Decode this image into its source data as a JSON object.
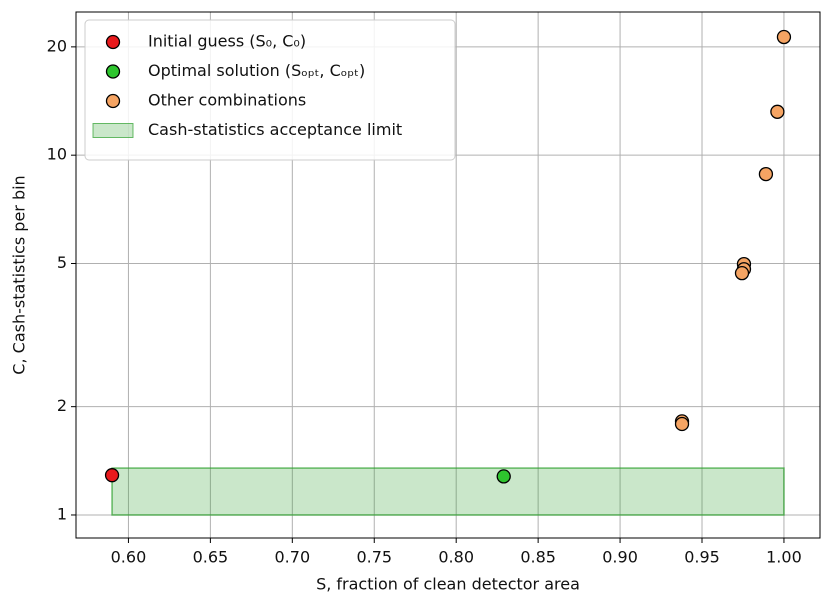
{
  "chart_data": {
    "type": "scatter",
    "xlabel": "S, fraction of clean detector area",
    "ylabel": "C, Cash-statistics per bin",
    "xlim": [
      0.568,
      1.022
    ],
    "ylim": [
      0.863,
      25
    ],
    "xticks": [
      {
        "value": 0.6,
        "label": "0.60"
      },
      {
        "value": 0.65,
        "label": "0.65"
      },
      {
        "value": 0.7,
        "label": "0.70"
      },
      {
        "value": 0.75,
        "label": "0.75"
      },
      {
        "value": 0.8,
        "label": "0.80"
      },
      {
        "value": 0.85,
        "label": "0.85"
      },
      {
        "value": 0.9,
        "label": "0.90"
      },
      {
        "value": 0.95,
        "label": "0.95"
      },
      {
        "value": 1.0,
        "label": "1.00"
      }
    ],
    "yticks": [
      1,
      2,
      5,
      10,
      20
    ],
    "yscale": "log",
    "grid": true,
    "legend": "upper left",
    "series": [
      {
        "name": "Initial guess (S₀, C₀)",
        "color": "#e8191c",
        "x": [
          0.59
        ],
        "values": [
          1.29
        ]
      },
      {
        "name": "Optimal solution (Sₒₚₜ, Cₒₚₜ)",
        "color": "#2ec52e",
        "x": [
          0.829
        ],
        "values": [
          1.28
        ]
      },
      {
        "name": "Other combinations",
        "color": "#f5a463",
        "x": [
          1.0,
          0.996,
          0.989,
          0.9756,
          0.9756,
          0.9744,
          0.9378,
          0.9378
        ],
        "values": [
          21.3,
          13.2,
          8.86,
          4.98,
          4.82,
          4.7,
          1.82,
          1.79
        ]
      }
    ],
    "bands": [
      {
        "name": "Cash-statistics acceptance limit",
        "color": "#2ca02c",
        "x": [
          0.59,
          1.0
        ],
        "values": [
          1,
          1.35
        ]
      }
    ]
  }
}
